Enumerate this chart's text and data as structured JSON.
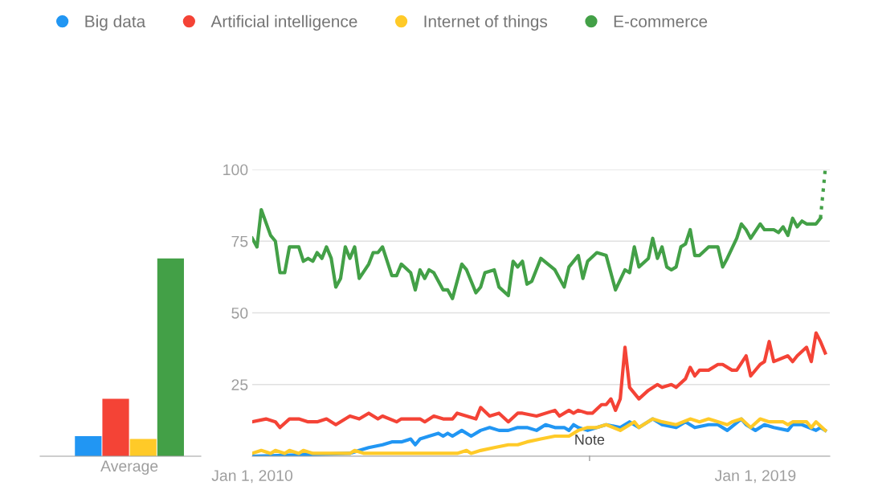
{
  "chart_data": [
    {
      "type": "bar",
      "categories": [
        "Average"
      ],
      "ylim": [
        0,
        100
      ],
      "tick_labels": "x",
      "grid": false,
      "legend": false,
      "series": [
        {
          "color": "#2196f3",
          "values": [
            7
          ]
        },
        {
          "color": "#f44336",
          "values": [
            20
          ]
        },
        {
          "color": "#ffca28",
          "values": [
            6
          ]
        },
        {
          "color": "#43a047",
          "values": [
            69
          ]
        }
      ]
    },
    {
      "type": "line",
      "legend": "top left",
      "grid": "y",
      "marker": "none",
      "line_style": "solid",
      "xlim": [
        "2010-01-01",
        "2020-05-01"
      ],
      "ylim": [
        0,
        100
      ],
      "xticks": [
        {
          "value": "2010-01-01",
          "label": "Jan 1, 2010"
        },
        {
          "value": "2019-01-01",
          "label": "Jan 1, 2019"
        }
      ],
      "yticks": [
        {
          "value": 0,
          "label": null
        },
        25,
        50,
        75,
        100
      ],
      "annotations": [
        "Note"
      ],
      "series": [
        {
          "name": "Big data",
          "color": "#2196f3",
          "x": [
            "2010-01",
            "2011-10",
            "2011-12",
            "2012-02",
            "2012-05",
            "2012-07",
            "2012-09",
            "2012-11",
            "2012-12",
            "2013-01",
            "2013-03",
            "2013-05",
            "2013-06",
            "2013-07",
            "2013-08",
            "2013-10",
            "2013-12",
            "2014-02",
            "2014-04",
            "2014-06",
            "2014-08",
            "2014-10",
            "2014-12",
            "2015-02",
            "2015-04",
            "2015-06",
            "2015-08",
            "2015-09",
            "2015-10",
            "2015-11",
            "2016-01",
            "2016-03",
            "2016-05",
            "2016-08",
            "2016-10",
            "2016-12",
            "2017-03",
            "2017-05",
            "2017-08",
            "2017-10",
            "2017-12",
            "2018-03",
            "2018-05",
            "2018-07",
            "2018-10",
            "2018-11",
            "2019-01",
            "2019-03",
            "2019-05",
            "2019-08",
            "2019-09",
            "2019-11",
            "2020-02",
            "2020-03",
            "2020-04"
          ],
          "values": [
            0,
            1,
            2,
            3,
            4,
            5,
            5,
            6,
            4,
            6,
            7,
            8,
            7,
            8,
            7,
            9,
            7,
            9,
            10,
            9,
            9,
            10,
            10,
            9,
            11,
            10,
            10,
            9,
            11,
            10,
            9,
            10,
            11,
            10,
            12,
            10,
            13,
            11,
            10,
            12,
            10,
            11,
            11,
            9,
            13,
            11,
            9,
            11,
            10,
            9,
            11,
            11,
            9,
            10,
            9
          ]
        },
        {
          "name": "Artificial intelligence",
          "color": "#f44336",
          "x": [
            "2010-01",
            "2010-04",
            "2010-06",
            "2010-07",
            "2010-09",
            "2010-11",
            "2011-01",
            "2011-03",
            "2011-05",
            "2011-07",
            "2011-10",
            "2011-12",
            "2012-02",
            "2012-04",
            "2012-05",
            "2012-08",
            "2012-09",
            "2013-01",
            "2013-02",
            "2013-04",
            "2013-06",
            "2013-08",
            "2013-09",
            "2013-11",
            "2014-01",
            "2014-02",
            "2014-04",
            "2014-06",
            "2014-08",
            "2014-10",
            "2014-11",
            "2015-02",
            "2015-06",
            "2015-07",
            "2015-09",
            "2015-10",
            "2015-11",
            "2016-01",
            "2016-02",
            "2016-04",
            "2016-05",
            "2016-06",
            "2016-07",
            "2016-08",
            "2016-09",
            "2016-10",
            "2016-12",
            "2017-02",
            "2017-04",
            "2017-05",
            "2017-07",
            "2017-08",
            "2017-10",
            "2017-11",
            "2017-12",
            "2018-01",
            "2018-03",
            "2018-05",
            "2018-06",
            "2018-08",
            "2018-09",
            "2018-11",
            "2018-12",
            "2019-02",
            "2019-03",
            "2019-04",
            "2019-05",
            "2019-08",
            "2019-09",
            "2019-10",
            "2019-12",
            "2020-01",
            "2020-02",
            "2020-03",
            "2020-04"
          ],
          "values": [
            12,
            13,
            12,
            10,
            13,
            13,
            12,
            12,
            13,
            11,
            14,
            13,
            15,
            13,
            14,
            12,
            13,
            13,
            12,
            14,
            13,
            13,
            15,
            14,
            13,
            17,
            14,
            15,
            12,
            15,
            15,
            14,
            16,
            14,
            16,
            15,
            16,
            15,
            15,
            18,
            18,
            20,
            16,
            20,
            38,
            24,
            20,
            23,
            25,
            24,
            25,
            24,
            27,
            31,
            28,
            30,
            30,
            32,
            32,
            30,
            30,
            35,
            28,
            32,
            33,
            40,
            33,
            35,
            33,
            35,
            38,
            33,
            43,
            40,
            36
          ]
        },
        {
          "name": "Internet of things",
          "color": "#ffca28",
          "x": [
            "2010-01",
            "2010-03",
            "2010-05",
            "2010-06",
            "2010-08",
            "2010-09",
            "2010-11",
            "2010-12",
            "2011-02",
            "2011-10",
            "2011-11",
            "2012-01",
            "2013-09",
            "2013-11",
            "2013-12",
            "2014-02",
            "2014-05",
            "2014-08",
            "2014-10",
            "2014-12",
            "2015-03",
            "2015-06",
            "2015-09",
            "2015-11",
            "2016-01",
            "2016-03",
            "2016-05",
            "2016-08",
            "2016-11",
            "2016-12",
            "2017-03",
            "2017-05",
            "2017-08",
            "2017-11",
            "2018-01",
            "2018-03",
            "2018-07",
            "2018-08",
            "2018-10",
            "2018-12",
            "2019-02",
            "2019-04",
            "2019-07",
            "2019-08",
            "2019-09",
            "2019-12",
            "2020-01",
            "2020-02",
            "2020-04"
          ],
          "values": [
            1,
            2,
            1,
            2,
            1,
            2,
            1,
            2,
            1,
            1,
            2,
            1,
            1,
            2,
            1,
            2,
            3,
            4,
            4,
            5,
            6,
            7,
            7,
            9,
            10,
            10,
            11,
            9,
            12,
            10,
            13,
            12,
            11,
            13,
            12,
            13,
            11,
            12,
            13,
            10,
            13,
            12,
            12,
            11,
            12,
            12,
            10,
            12,
            9
          ]
        },
        {
          "name": "E-commerce",
          "color": "#43a047",
          "x": [
            "2010-01",
            "2010-02",
            "2010-03",
            "2010-05",
            "2010-06",
            "2010-07",
            "2010-08",
            "2010-09",
            "2010-11",
            "2010-12",
            "2011-01",
            "2011-02",
            "2011-03",
            "2011-04",
            "2011-05",
            "2011-06",
            "2011-07",
            "2011-08",
            "2011-09",
            "2011-10",
            "2011-11",
            "2011-12",
            "2012-02",
            "2012-03",
            "2012-04",
            "2012-05",
            "2012-07",
            "2012-08",
            "2012-09",
            "2012-11",
            "2012-12",
            "2013-01",
            "2013-02",
            "2013-03",
            "2013-04",
            "2013-06",
            "2013-07",
            "2013-08",
            "2013-10",
            "2013-11",
            "2014-01",
            "2014-02",
            "2014-03",
            "2014-05",
            "2014-06",
            "2014-08",
            "2014-09",
            "2014-10",
            "2014-11",
            "2014-12",
            "2015-01",
            "2015-03",
            "2015-06",
            "2015-08",
            "2015-09",
            "2015-11",
            "2015-12",
            "2016-01",
            "2016-03",
            "2016-05",
            "2016-07",
            "2016-09",
            "2016-10",
            "2016-11",
            "2016-12",
            "2017-02",
            "2017-03",
            "2017-04",
            "2017-05",
            "2017-06",
            "2017-07",
            "2017-08",
            "2017-09",
            "2017-10",
            "2017-11",
            "2017-12",
            "2018-01",
            "2018-03",
            "2018-05",
            "2018-06",
            "2018-07",
            "2018-09",
            "2018-10",
            "2018-11",
            "2018-12",
            "2019-02",
            "2019-03",
            "2019-05",
            "2019-06",
            "2019-07",
            "2019-08",
            "2019-09",
            "2019-10",
            "2019-11",
            "2019-12",
            "2020-02",
            "2020-03"
          ],
          "values": [
            76,
            73,
            86,
            77,
            75,
            64,
            64,
            73,
            73,
            68,
            69,
            68,
            71,
            69,
            73,
            69,
            59,
            62,
            73,
            69,
            73,
            62,
            67,
            71,
            71,
            73,
            63,
            63,
            67,
            64,
            58,
            65,
            62,
            65,
            64,
            58,
            58,
            55,
            67,
            65,
            57,
            59,
            64,
            65,
            59,
            56,
            68,
            66,
            68,
            60,
            61,
            69,
            65,
            59,
            66,
            70,
            62,
            68,
            71,
            70,
            58,
            65,
            64,
            73,
            66,
            69,
            76,
            69,
            73,
            66,
            65,
            66,
            73,
            74,
            79,
            70,
            70,
            73,
            73,
            66,
            69,
            76,
            81,
            79,
            76,
            81,
            79,
            79,
            78,
            80,
            77,
            83,
            80,
            82,
            81,
            81,
            83
          ]
        },
        {
          "color": "#43a047",
          "line_style": "dotted",
          "x": [
            "2020-03",
            "2020-04"
          ],
          "values": [
            83,
            100
          ]
        }
      ]
    }
  ]
}
